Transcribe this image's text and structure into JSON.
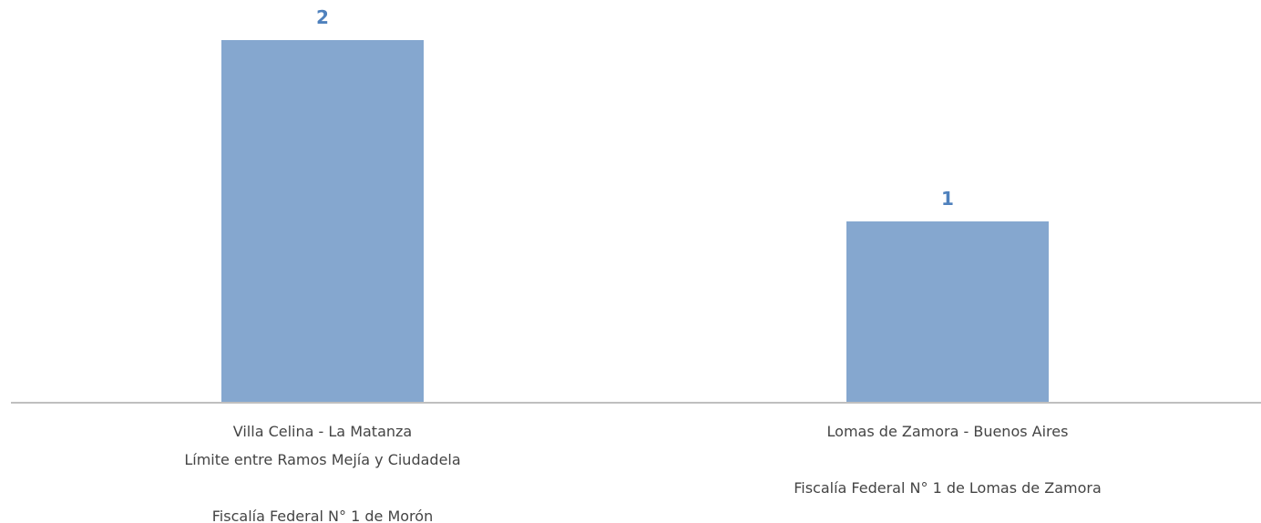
{
  "chart_data": {
    "type": "bar",
    "categories": [
      {
        "lines": [
          "Villa Celina - La Matanza",
          "Límite entre Ramos Mejía y Ciudadela",
          "",
          "Fiscalía Federal N° 1 de Morón"
        ]
      },
      {
        "lines": [
          "Lomas de Zamora - Buenos Aires",
          "",
          "Fiscalía Federal N° 1 de Lomas de Zamora"
        ]
      }
    ],
    "values": [
      2,
      1
    ],
    "data_labels": [
      "2",
      "1"
    ],
    "ylim": [
      0,
      2
    ],
    "grid": false,
    "legend": "none",
    "title": "",
    "xlabel": "",
    "ylabel": ""
  },
  "colors": {
    "bar": "#85a7cf",
    "data_label": "#4f81bd",
    "axis": "#bfbfbf",
    "category_text": "#444444"
  }
}
